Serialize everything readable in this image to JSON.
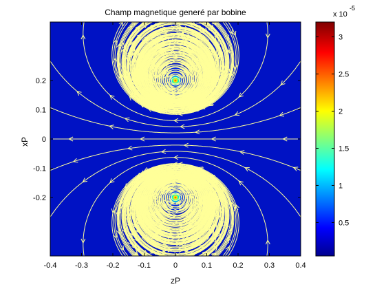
{
  "chart_data": {
    "type": "heatmap",
    "title": "Champ magnetique generé par bobine",
    "xlabel": "zP",
    "ylabel": "xP",
    "xlim": [
      -0.4,
      0.4
    ],
    "ylim": [
      -0.4,
      0.4
    ],
    "x_ticks": [
      "-0.4",
      "-0.3",
      "-0.2",
      "-0.1",
      "0",
      "0.1",
      "0.2",
      "0.3",
      "0.4"
    ],
    "y_ticks": [
      "0.2",
      "0.1",
      "0",
      "-0.1",
      "-0.2"
    ],
    "y_tick_values": [
      0.2,
      0.1,
      0,
      -0.1,
      -0.2
    ],
    "x_tick_values": [
      -0.4,
      -0.3,
      -0.2,
      -0.1,
      0,
      0.1,
      0.2,
      0.3,
      0.4
    ],
    "overlay": "streamlines",
    "streamline_color": "#ffff99",
    "coil_positions": [
      {
        "z": 0,
        "x": 0.2
      },
      {
        "z": 0,
        "x": -0.2
      }
    ],
    "colorbar": {
      "colormap": "jet",
      "clim": [
        0.05,
        3.2
      ],
      "ticks": [
        "0.5",
        "1",
        "1.5",
        "2",
        "2.5",
        "3"
      ],
      "tick_values": [
        0.5,
        1,
        1.5,
        2,
        2.5,
        3
      ],
      "multiplier": "x 10",
      "exponent": "-5"
    }
  }
}
